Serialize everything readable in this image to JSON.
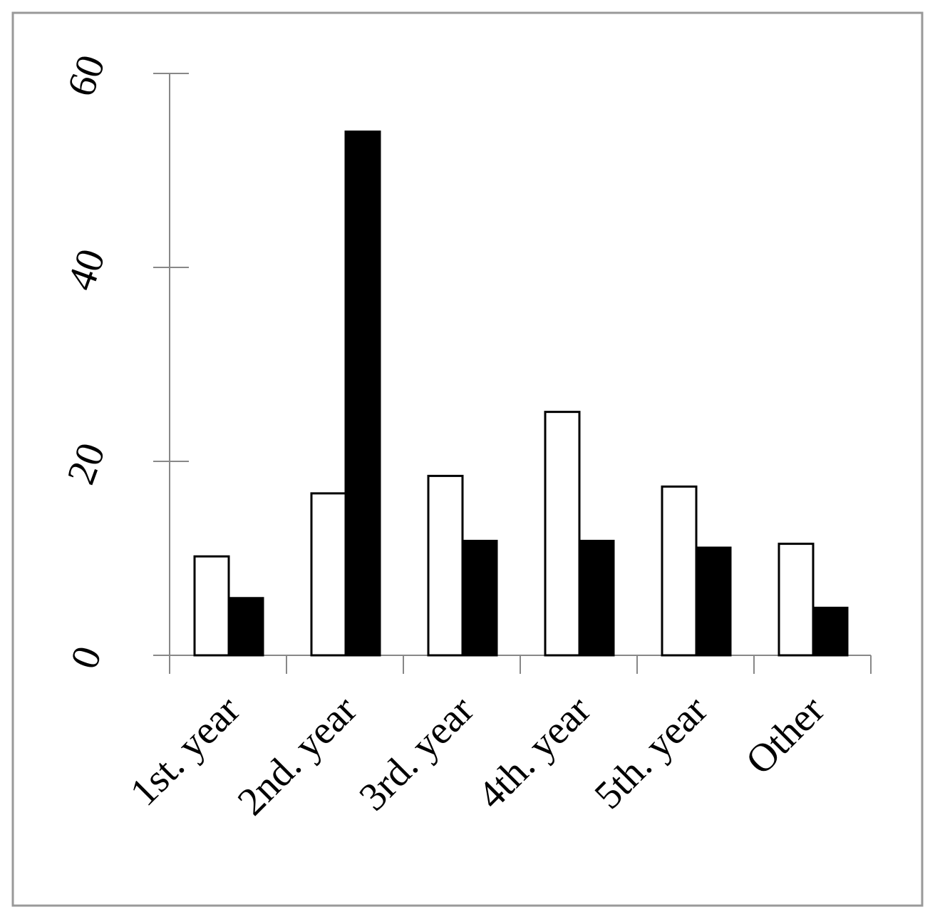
{
  "chart_data": {
    "type": "bar",
    "categories": [
      "1st. year",
      "2nd. year",
      "3rd. year",
      "4th. year",
      "5th. year",
      "Other"
    ],
    "series": [
      {
        "color": "#ffffff",
        "values": [
          10.2,
          16.7,
          18.5,
          25.1,
          17.4,
          11.5
        ]
      },
      {
        "color": "#000000",
        "values": [
          5.9,
          54.0,
          11.8,
          11.8,
          11.1,
          4.9
        ]
      }
    ],
    "ylim": [
      0,
      60
    ],
    "yticks": [
      0,
      20,
      40,
      60
    ]
  }
}
